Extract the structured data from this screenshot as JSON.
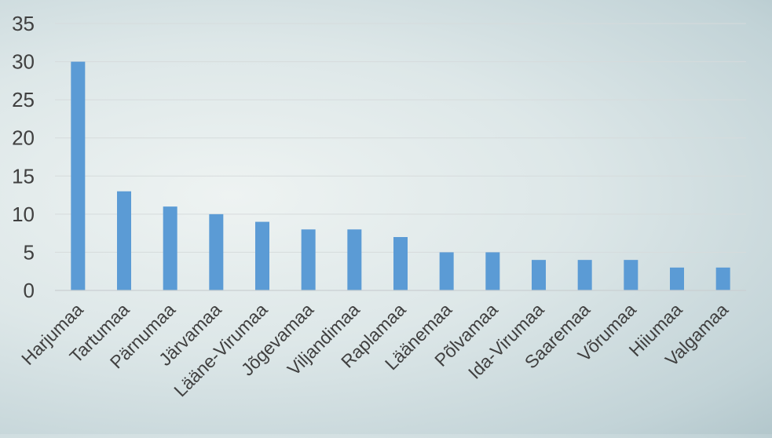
{
  "chart_data": {
    "type": "bar",
    "title": "",
    "xlabel": "",
    "ylabel": "",
    "categories": [
      "Harjumaa",
      "Tartumaa",
      "Pärnumaa",
      "Järvamaa",
      "Lääne-Virumaa",
      "Jõgevamaa",
      "Viljandimaa",
      "Raplamaa",
      "Läänemaa",
      "Põlvamaa",
      "Ida-Virumaa",
      "Saaremaa",
      "Võrumaa",
      "Hiiumaa",
      "Valgamaa"
    ],
    "values": [
      30,
      13,
      11,
      10,
      9,
      8,
      8,
      7,
      5,
      5,
      4,
      4,
      4,
      3,
      3
    ],
    "ylim": [
      0,
      35
    ],
    "yticks": [
      "0",
      "5",
      "10",
      "15",
      "20",
      "25",
      "30",
      "35"
    ],
    "grid": true,
    "legend": "none",
    "bar_color": "#5b9bd5",
    "grid_color": "#d6dbdc",
    "axis_color": "#c9cfd1",
    "text_color": "#404040"
  }
}
